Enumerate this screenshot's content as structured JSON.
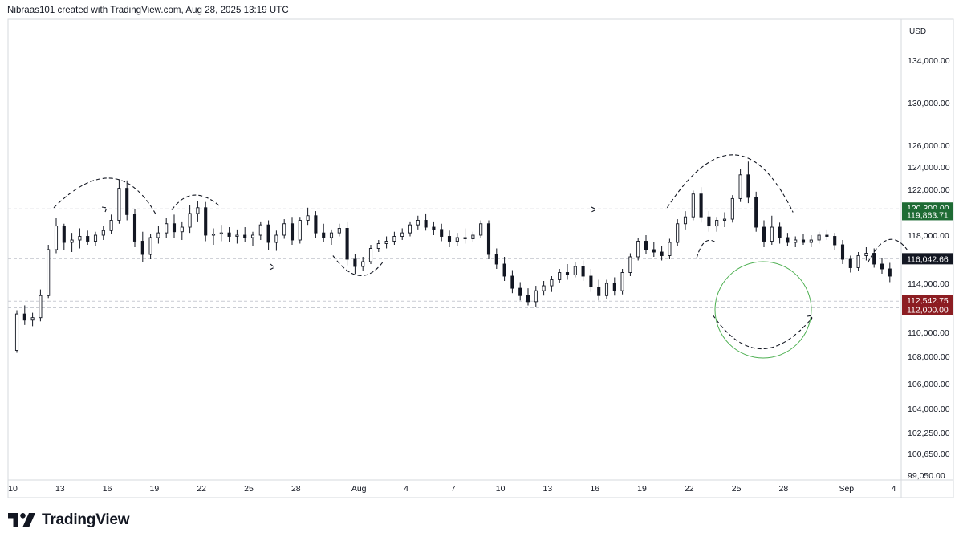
{
  "header": {
    "caption": "Nibraas101 created with TradingView.com, Aug 28, 2025 13:19 UTC"
  },
  "brand": {
    "name": "TradingView",
    "logo_icon": "tradingview-logo-icon"
  },
  "colors": {
    "candle": "#131722",
    "grid": "#c9ccd3",
    "green_label": "#1e6b34",
    "red_label": "#8c1d22",
    "black_label": "#131722",
    "circle": "#4caf50",
    "axis_text": "#131722"
  },
  "chart_data": {
    "type": "candlestick",
    "currency_label": "USD",
    "interval": "4h",
    "x_range": [
      "2025-07-10",
      "2025-09-04"
    ],
    "y_range": [
      99050,
      136000
    ],
    "x_ticks": [
      {
        "date": "2025-07-10",
        "label": "10"
      },
      {
        "date": "2025-07-13",
        "label": "13"
      },
      {
        "date": "2025-07-16",
        "label": "16"
      },
      {
        "date": "2025-07-19",
        "label": "19"
      },
      {
        "date": "2025-07-22",
        "label": "22"
      },
      {
        "date": "2025-07-25",
        "label": "25"
      },
      {
        "date": "2025-07-28",
        "label": "28"
      },
      {
        "date": "2025-08-01",
        "label": "Aug"
      },
      {
        "date": "2025-08-04",
        "label": "4"
      },
      {
        "date": "2025-08-07",
        "label": "7"
      },
      {
        "date": "2025-08-10",
        "label": "10"
      },
      {
        "date": "2025-08-13",
        "label": "13"
      },
      {
        "date": "2025-08-16",
        "label": "16"
      },
      {
        "date": "2025-08-19",
        "label": "19"
      },
      {
        "date": "2025-08-22",
        "label": "22"
      },
      {
        "date": "2025-08-25",
        "label": "25"
      },
      {
        "date": "2025-08-28",
        "label": "28"
      },
      {
        "date": "2025-09-01",
        "label": "Sep"
      },
      {
        "date": "2025-09-04",
        "label": "4"
      }
    ],
    "y_ticks": [
      {
        "value": 134000,
        "label": "134,000.00"
      },
      {
        "value": 130000,
        "label": "130,000.00"
      },
      {
        "value": 126000,
        "label": "126,000.00"
      },
      {
        "value": 124000,
        "label": "124,000.00"
      },
      {
        "value": 122000,
        "label": "122,000.00"
      },
      {
        "value": 118000,
        "label": "118,000.00"
      },
      {
        "value": 114000,
        "label": "114,000.00"
      },
      {
        "value": 110000,
        "label": "110,000.00"
      },
      {
        "value": 108000,
        "label": "108,000.00"
      },
      {
        "value": 106000,
        "label": "106,000.00"
      },
      {
        "value": 104000,
        "label": "104,000.00"
      },
      {
        "value": 102250,
        "label": "102,250.00"
      },
      {
        "value": 100650,
        "label": "100,650.00"
      },
      {
        "value": 99050,
        "label": "99,050.00"
      }
    ],
    "price_levels": [
      {
        "value": 120300,
        "label": "120,300.00",
        "style": "green"
      },
      {
        "value": 119863.71,
        "label": "119,863.71",
        "style": "green"
      },
      {
        "value": 116042.66,
        "label": "116,042.66",
        "style": "black"
      },
      {
        "value": 112542.75,
        "label": "112,542.75",
        "style": "red"
      },
      {
        "value": 112000,
        "label": "112,000.00",
        "style": "red"
      }
    ],
    "candles": [
      {
        "t": "2025-07-10T00:00",
        "o": 108500,
        "h": 111800,
        "l": 108300,
        "c": 111500
      },
      {
        "t": "2025-07-10T12:00",
        "o": 111500,
        "h": 112200,
        "l": 110600,
        "c": 111000
      },
      {
        "t": "2025-07-11T00:00",
        "o": 111000,
        "h": 111600,
        "l": 110500,
        "c": 111200
      },
      {
        "t": "2025-07-11T12:00",
        "o": 111200,
        "h": 113500,
        "l": 110900,
        "c": 113000
      },
      {
        "t": "2025-07-12T00:00",
        "o": 113000,
        "h": 117200,
        "l": 112800,
        "c": 116800
      },
      {
        "t": "2025-07-12T12:00",
        "o": 116800,
        "h": 119500,
        "l": 116500,
        "c": 118800
      },
      {
        "t": "2025-07-13T00:00",
        "o": 118800,
        "h": 119000,
        "l": 116800,
        "c": 117400
      },
      {
        "t": "2025-07-13T12:00",
        "o": 117400,
        "h": 118200,
        "l": 116600,
        "c": 117600
      },
      {
        "t": "2025-07-14T00:00",
        "o": 117600,
        "h": 118600,
        "l": 116900,
        "c": 117900
      },
      {
        "t": "2025-07-14T12:00",
        "o": 117900,
        "h": 118400,
        "l": 117200,
        "c": 117500
      },
      {
        "t": "2025-07-15T00:00",
        "o": 117500,
        "h": 118300,
        "l": 117100,
        "c": 118000
      },
      {
        "t": "2025-07-15T12:00",
        "o": 118000,
        "h": 118800,
        "l": 117600,
        "c": 118400
      },
      {
        "t": "2025-07-16T00:00",
        "o": 118400,
        "h": 119800,
        "l": 118100,
        "c": 119300
      },
      {
        "t": "2025-07-16T12:00",
        "o": 119300,
        "h": 122900,
        "l": 119000,
        "c": 122100
      },
      {
        "t": "2025-07-17T00:00",
        "o": 122100,
        "h": 122800,
        "l": 119300,
        "c": 119800
      },
      {
        "t": "2025-07-17T12:00",
        "o": 119800,
        "h": 120300,
        "l": 117000,
        "c": 117500
      },
      {
        "t": "2025-07-18T00:00",
        "o": 117500,
        "h": 118300,
        "l": 115800,
        "c": 116400
      },
      {
        "t": "2025-07-18T12:00",
        "o": 116400,
        "h": 118100,
        "l": 116000,
        "c": 117800
      },
      {
        "t": "2025-07-19T00:00",
        "o": 117800,
        "h": 118800,
        "l": 117300,
        "c": 118200
      },
      {
        "t": "2025-07-19T12:00",
        "o": 118200,
        "h": 119500,
        "l": 117800,
        "c": 119000
      },
      {
        "t": "2025-07-20T00:00",
        "o": 119000,
        "h": 119800,
        "l": 117800,
        "c": 118300
      },
      {
        "t": "2025-07-20T12:00",
        "o": 118300,
        "h": 119200,
        "l": 117600,
        "c": 118700
      },
      {
        "t": "2025-07-21T00:00",
        "o": 118700,
        "h": 120600,
        "l": 118200,
        "c": 119900
      },
      {
        "t": "2025-07-21T12:00",
        "o": 119900,
        "h": 121000,
        "l": 119200,
        "c": 120400
      },
      {
        "t": "2025-07-22T00:00",
        "o": 120400,
        "h": 120900,
        "l": 117500,
        "c": 118000
      },
      {
        "t": "2025-07-22T12:00",
        "o": 118000,
        "h": 118600,
        "l": 117200,
        "c": 118100
      },
      {
        "t": "2025-07-23T00:00",
        "o": 118100,
        "h": 118900,
        "l": 117500,
        "c": 118200
      },
      {
        "t": "2025-07-23T12:00",
        "o": 118200,
        "h": 118700,
        "l": 117400,
        "c": 117900
      },
      {
        "t": "2025-07-24T00:00",
        "o": 117900,
        "h": 118500,
        "l": 117300,
        "c": 118000
      },
      {
        "t": "2025-07-24T12:00",
        "o": 118000,
        "h": 118700,
        "l": 117400,
        "c": 117800
      },
      {
        "t": "2025-07-25T00:00",
        "o": 117800,
        "h": 118300,
        "l": 117100,
        "c": 118000
      },
      {
        "t": "2025-07-25T12:00",
        "o": 118000,
        "h": 119200,
        "l": 117600,
        "c": 118900
      },
      {
        "t": "2025-07-26T00:00",
        "o": 118900,
        "h": 119300,
        "l": 116800,
        "c": 117400
      },
      {
        "t": "2025-07-26T12:00",
        "o": 117400,
        "h": 118400,
        "l": 116700,
        "c": 118000
      },
      {
        "t": "2025-07-27T00:00",
        "o": 118000,
        "h": 119400,
        "l": 117700,
        "c": 119000
      },
      {
        "t": "2025-07-27T12:00",
        "o": 119000,
        "h": 119600,
        "l": 117200,
        "c": 117600
      },
      {
        "t": "2025-07-28T00:00",
        "o": 117600,
        "h": 119600,
        "l": 117300,
        "c": 119300
      },
      {
        "t": "2025-07-28T12:00",
        "o": 119300,
        "h": 120400,
        "l": 118900,
        "c": 119700
      },
      {
        "t": "2025-07-29T00:00",
        "o": 119700,
        "h": 120100,
        "l": 117800,
        "c": 118200
      },
      {
        "t": "2025-07-29T12:00",
        "o": 118200,
        "h": 119000,
        "l": 117400,
        "c": 117800
      },
      {
        "t": "2025-07-30T00:00",
        "o": 117800,
        "h": 118500,
        "l": 117200,
        "c": 118200
      },
      {
        "t": "2025-07-30T12:00",
        "o": 118200,
        "h": 119000,
        "l": 117900,
        "c": 118600
      },
      {
        "t": "2025-07-31T00:00",
        "o": 118600,
        "h": 119200,
        "l": 115500,
        "c": 116000
      },
      {
        "t": "2025-07-31T12:00",
        "o": 116000,
        "h": 116400,
        "l": 114800,
        "c": 115400
      },
      {
        "t": "2025-08-01T00:00",
        "o": 115400,
        "h": 116200,
        "l": 115000,
        "c": 115800
      },
      {
        "t": "2025-08-01T12:00",
        "o": 115800,
        "h": 117200,
        "l": 115600,
        "c": 116900
      },
      {
        "t": "2025-08-02T00:00",
        "o": 116900,
        "h": 117600,
        "l": 116600,
        "c": 117300
      },
      {
        "t": "2025-08-02T12:00",
        "o": 117300,
        "h": 117900,
        "l": 116900,
        "c": 117500
      },
      {
        "t": "2025-08-03T00:00",
        "o": 117500,
        "h": 118300,
        "l": 117200,
        "c": 117900
      },
      {
        "t": "2025-08-03T12:00",
        "o": 117900,
        "h": 118600,
        "l": 117600,
        "c": 118200
      },
      {
        "t": "2025-08-04T00:00",
        "o": 118200,
        "h": 119200,
        "l": 117900,
        "c": 118900
      },
      {
        "t": "2025-08-04T12:00",
        "o": 118900,
        "h": 119700,
        "l": 118500,
        "c": 119300
      },
      {
        "t": "2025-08-05T00:00",
        "o": 119300,
        "h": 119900,
        "l": 118400,
        "c": 118700
      },
      {
        "t": "2025-08-05T12:00",
        "o": 118700,
        "h": 119200,
        "l": 118000,
        "c": 118500
      },
      {
        "t": "2025-08-06T00:00",
        "o": 118500,
        "h": 119000,
        "l": 117500,
        "c": 117900
      },
      {
        "t": "2025-08-06T12:00",
        "o": 117900,
        "h": 118400,
        "l": 117000,
        "c": 117500
      },
      {
        "t": "2025-08-07T00:00",
        "o": 117500,
        "h": 118200,
        "l": 117100,
        "c": 117800
      },
      {
        "t": "2025-08-07T12:00",
        "o": 117800,
        "h": 118600,
        "l": 117300,
        "c": 117700
      },
      {
        "t": "2025-08-08T00:00",
        "o": 117700,
        "h": 118300,
        "l": 117400,
        "c": 118000
      },
      {
        "t": "2025-08-08T12:00",
        "o": 118000,
        "h": 119300,
        "l": 117800,
        "c": 119000
      },
      {
        "t": "2025-08-09T00:00",
        "o": 119000,
        "h": 119300,
        "l": 116000,
        "c": 116400
      },
      {
        "t": "2025-08-09T12:00",
        "o": 116400,
        "h": 116900,
        "l": 115200,
        "c": 115600
      },
      {
        "t": "2025-08-10T00:00",
        "o": 115600,
        "h": 116200,
        "l": 114200,
        "c": 114600
      },
      {
        "t": "2025-08-10T12:00",
        "o": 114600,
        "h": 115100,
        "l": 113200,
        "c": 113600
      },
      {
        "t": "2025-08-11T00:00",
        "o": 113600,
        "h": 114100,
        "l": 112600,
        "c": 113000
      },
      {
        "t": "2025-08-11T12:00",
        "o": 113000,
        "h": 113600,
        "l": 112200,
        "c": 112500
      },
      {
        "t": "2025-08-12T00:00",
        "o": 112500,
        "h": 113800,
        "l": 112100,
        "c": 113400
      },
      {
        "t": "2025-08-12T12:00",
        "o": 113400,
        "h": 114200,
        "l": 113000,
        "c": 113800
      },
      {
        "t": "2025-08-13T00:00",
        "o": 113800,
        "h": 114600,
        "l": 113300,
        "c": 114300
      },
      {
        "t": "2025-08-13T12:00",
        "o": 114300,
        "h": 115200,
        "l": 114000,
        "c": 114900
      },
      {
        "t": "2025-08-14T00:00",
        "o": 114900,
        "h": 115600,
        "l": 114300,
        "c": 114700
      },
      {
        "t": "2025-08-14T12:00",
        "o": 114700,
        "h": 115800,
        "l": 114500,
        "c": 115400
      },
      {
        "t": "2025-08-15T00:00",
        "o": 115400,
        "h": 115900,
        "l": 114200,
        "c": 114600
      },
      {
        "t": "2025-08-15T12:00",
        "o": 114600,
        "h": 115200,
        "l": 113300,
        "c": 113700
      },
      {
        "t": "2025-08-16T00:00",
        "o": 113700,
        "h": 114300,
        "l": 112600,
        "c": 113000
      },
      {
        "t": "2025-08-16T12:00",
        "o": 113000,
        "h": 114300,
        "l": 112700,
        "c": 114000
      },
      {
        "t": "2025-08-17T00:00",
        "o": 114000,
        "h": 114500,
        "l": 113000,
        "c": 113400
      },
      {
        "t": "2025-08-17T12:00",
        "o": 113400,
        "h": 115200,
        "l": 113100,
        "c": 114900
      },
      {
        "t": "2025-08-18T00:00",
        "o": 114900,
        "h": 116500,
        "l": 114600,
        "c": 116200
      },
      {
        "t": "2025-08-18T12:00",
        "o": 116200,
        "h": 117800,
        "l": 115900,
        "c": 117500
      },
      {
        "t": "2025-08-19T00:00",
        "o": 117500,
        "h": 118000,
        "l": 116400,
        "c": 116800
      },
      {
        "t": "2025-08-19T12:00",
        "o": 116800,
        "h": 117400,
        "l": 116200,
        "c": 116600
      },
      {
        "t": "2025-08-20T00:00",
        "o": 116600,
        "h": 117100,
        "l": 115900,
        "c": 116300
      },
      {
        "t": "2025-08-20T12:00",
        "o": 116300,
        "h": 117700,
        "l": 116000,
        "c": 117400
      },
      {
        "t": "2025-08-21T00:00",
        "o": 117400,
        "h": 119400,
        "l": 117100,
        "c": 119000
      },
      {
        "t": "2025-08-21T12:00",
        "o": 119000,
        "h": 120100,
        "l": 118500,
        "c": 119600
      },
      {
        "t": "2025-08-22T00:00",
        "o": 119600,
        "h": 121900,
        "l": 119300,
        "c": 121600
      },
      {
        "t": "2025-08-22T12:00",
        "o": 121600,
        "h": 122200,
        "l": 119100,
        "c": 119600
      },
      {
        "t": "2025-08-23T00:00",
        "o": 119600,
        "h": 120100,
        "l": 118300,
        "c": 118800
      },
      {
        "t": "2025-08-23T12:00",
        "o": 118800,
        "h": 119600,
        "l": 118300,
        "c": 119300
      },
      {
        "t": "2025-08-24T00:00",
        "o": 119300,
        "h": 120000,
        "l": 118700,
        "c": 119400
      },
      {
        "t": "2025-08-24T12:00",
        "o": 119400,
        "h": 121500,
        "l": 119100,
        "c": 121200
      },
      {
        "t": "2025-08-25T00:00",
        "o": 121200,
        "h": 123800,
        "l": 120900,
        "c": 123300
      },
      {
        "t": "2025-08-25T12:00",
        "o": 123300,
        "h": 124500,
        "l": 120800,
        "c": 121300
      },
      {
        "t": "2025-08-26T00:00",
        "o": 121300,
        "h": 121800,
        "l": 118300,
        "c": 118700
      },
      {
        "t": "2025-08-26T12:00",
        "o": 118700,
        "h": 119300,
        "l": 117000,
        "c": 117500
      },
      {
        "t": "2025-08-27T00:00",
        "o": 117500,
        "h": 119700,
        "l": 117200,
        "c": 118700
      },
      {
        "t": "2025-08-27T12:00",
        "o": 118700,
        "h": 119100,
        "l": 117300,
        "c": 117800
      },
      {
        "t": "2025-08-28T00:00",
        "o": 117800,
        "h": 118200,
        "l": 117100,
        "c": 117400
      },
      {
        "t": "2025-08-28T12:00",
        "o": 117400,
        "h": 117900,
        "l": 117000,
        "c": 117600
      },
      {
        "t": "2025-08-29T00:00",
        "o": 117600,
        "h": 118100,
        "l": 117200,
        "c": 117400
      },
      {
        "t": "2025-08-29T12:00",
        "o": 117400,
        "h": 118000,
        "l": 117000,
        "c": 117600
      },
      {
        "t": "2025-08-30T00:00",
        "o": 117600,
        "h": 118300,
        "l": 117300,
        "c": 118000
      },
      {
        "t": "2025-08-30T12:00",
        "o": 118000,
        "h": 118500,
        "l": 117600,
        "c": 117900
      },
      {
        "t": "2025-08-31T00:00",
        "o": 117900,
        "h": 118200,
        "l": 116800,
        "c": 117200
      },
      {
        "t": "2025-08-31T12:00",
        "o": 117200,
        "h": 117600,
        "l": 115600,
        "c": 116000
      },
      {
        "t": "2025-09-01T00:00",
        "o": 116000,
        "h": 116300,
        "l": 114900,
        "c": 115300
      },
      {
        "t": "2025-09-01T12:00",
        "o": 115300,
        "h": 116600,
        "l": 115000,
        "c": 116300
      },
      {
        "t": "2025-09-02T00:00",
        "o": 116300,
        "h": 117000,
        "l": 115900,
        "c": 116500
      },
      {
        "t": "2025-09-02T12:00",
        "o": 116500,
        "h": 116900,
        "l": 115300,
        "c": 115600
      },
      {
        "t": "2025-09-03T00:00",
        "o": 115600,
        "h": 116100,
        "l": 114800,
        "c": 115200
      },
      {
        "t": "2025-09-03T12:00",
        "o": 115200,
        "h": 115700,
        "l": 114100,
        "c": 114600
      }
    ]
  }
}
